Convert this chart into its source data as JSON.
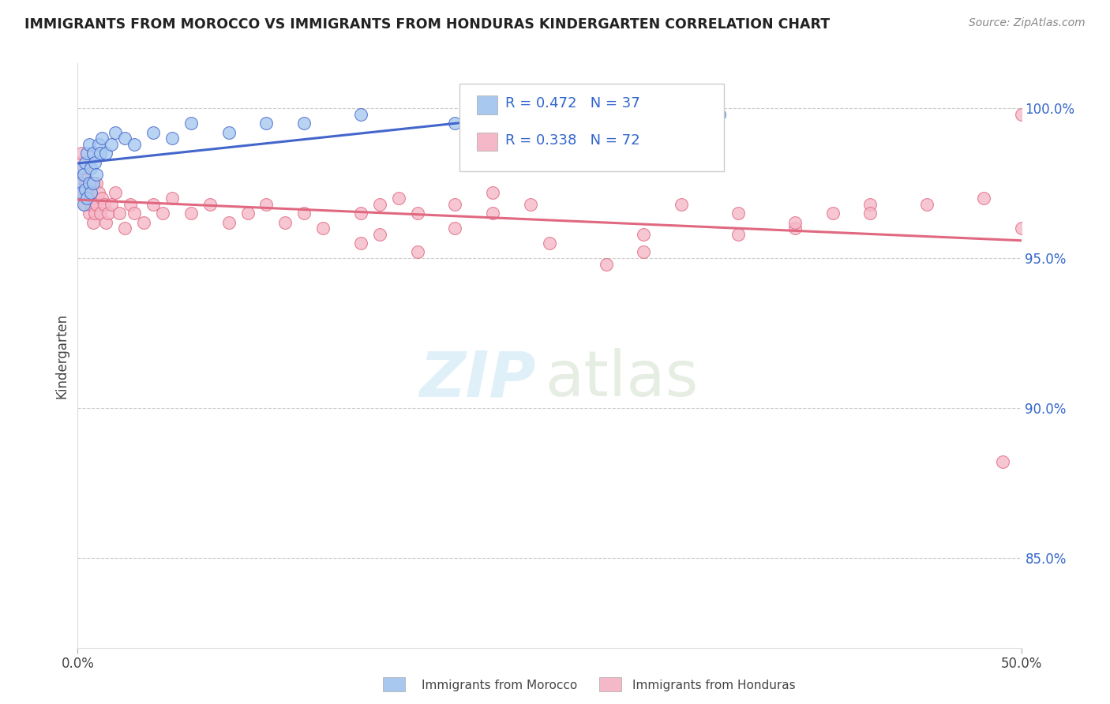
{
  "title": "IMMIGRANTS FROM MOROCCO VS IMMIGRANTS FROM HONDURAS KINDERGARTEN CORRELATION CHART",
  "source": "Source: ZipAtlas.com",
  "ylabel": "Kindergarten",
  "yticks_labels": [
    "85.0%",
    "90.0%",
    "95.0%",
    "100.0%"
  ],
  "ytick_values": [
    0.85,
    0.9,
    0.95,
    1.0
  ],
  "xlim": [
    0.0,
    0.5
  ],
  "ylim": [
    0.82,
    1.015
  ],
  "morocco_R": 0.472,
  "morocco_N": 37,
  "honduras_R": 0.338,
  "honduras_N": 72,
  "morocco_color": "#A8C8F0",
  "honduras_color": "#F5B8C8",
  "morocco_line_color": "#4466CC",
  "honduras_line_color": "#E06880",
  "legend_morocco_label": "Immigrants from Morocco",
  "legend_honduras_label": "Immigrants from Honduras",
  "morocco_x": [
    0.001,
    0.002,
    0.002,
    0.003,
    0.003,
    0.004,
    0.004,
    0.005,
    0.005,
    0.006,
    0.006,
    0.007,
    0.007,
    0.008,
    0.008,
    0.009,
    0.01,
    0.011,
    0.012,
    0.013,
    0.015,
    0.018,
    0.02,
    0.025,
    0.03,
    0.04,
    0.05,
    0.06,
    0.08,
    0.1,
    0.12,
    0.15,
    0.2,
    0.25,
    0.3,
    0.32,
    0.34
  ],
  "morocco_y": [
    0.975,
    0.972,
    0.98,
    0.968,
    0.978,
    0.973,
    0.982,
    0.97,
    0.985,
    0.975,
    0.988,
    0.972,
    0.98,
    0.975,
    0.985,
    0.982,
    0.978,
    0.988,
    0.985,
    0.99,
    0.985,
    0.988,
    0.992,
    0.99,
    0.988,
    0.992,
    0.99,
    0.995,
    0.992,
    0.995,
    0.995,
    0.998,
    0.995,
    0.998,
    0.998,
    1.0,
    0.998
  ],
  "honduras_x": [
    0.001,
    0.001,
    0.002,
    0.002,
    0.003,
    0.003,
    0.004,
    0.004,
    0.005,
    0.005,
    0.006,
    0.006,
    0.007,
    0.007,
    0.008,
    0.008,
    0.009,
    0.01,
    0.01,
    0.011,
    0.012,
    0.013,
    0.014,
    0.015,
    0.016,
    0.018,
    0.02,
    0.022,
    0.025,
    0.028,
    0.03,
    0.035,
    0.04,
    0.045,
    0.05,
    0.06,
    0.07,
    0.08,
    0.09,
    0.1,
    0.11,
    0.12,
    0.13,
    0.15,
    0.16,
    0.17,
    0.18,
    0.2,
    0.22,
    0.24,
    0.15,
    0.18,
    0.16,
    0.2,
    0.22,
    0.25,
    0.3,
    0.32,
    0.35,
    0.38,
    0.4,
    0.42,
    0.28,
    0.3,
    0.35,
    0.38,
    0.42,
    0.45,
    0.48,
    0.5,
    0.5,
    0.49
  ],
  "honduras_y": [
    0.975,
    0.982,
    0.978,
    0.985,
    0.972,
    0.98,
    0.968,
    0.975,
    0.97,
    0.976,
    0.965,
    0.972,
    0.968,
    0.975,
    0.962,
    0.97,
    0.965,
    0.968,
    0.975,
    0.972,
    0.965,
    0.97,
    0.968,
    0.962,
    0.965,
    0.968,
    0.972,
    0.965,
    0.96,
    0.968,
    0.965,
    0.962,
    0.968,
    0.965,
    0.97,
    0.965,
    0.968,
    0.962,
    0.965,
    0.968,
    0.962,
    0.965,
    0.96,
    0.965,
    0.968,
    0.97,
    0.965,
    0.968,
    0.972,
    0.968,
    0.955,
    0.952,
    0.958,
    0.96,
    0.965,
    0.955,
    0.958,
    0.968,
    0.965,
    0.96,
    0.965,
    0.968,
    0.948,
    0.952,
    0.958,
    0.962,
    0.965,
    0.968,
    0.97,
    0.998,
    0.96,
    0.882
  ]
}
